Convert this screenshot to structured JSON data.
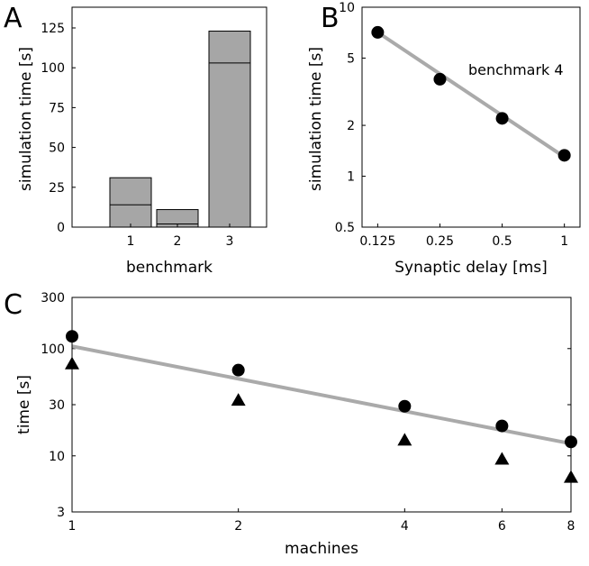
{
  "chart_data": [
    {
      "id": "A",
      "type": "bar",
      "panel_letter": "A",
      "categories": [
        "1",
        "2",
        "3"
      ],
      "series": [
        {
          "name": "total",
          "values": [
            31,
            11,
            123
          ]
        },
        {
          "name": "inner",
          "values": [
            14,
            2,
            103
          ]
        }
      ],
      "xlabel": "benchmark",
      "ylabel": "simulation time [s]",
      "ylim": [
        0,
        138
      ],
      "yticks": [
        0,
        25,
        50,
        75,
        100,
        125
      ],
      "ytick_labels": [
        "0",
        "25",
        "50",
        "75",
        "100",
        "125"
      ],
      "bar_color": "#a6a6a6"
    },
    {
      "id": "B",
      "type": "line",
      "panel_letter": "B",
      "x": [
        0.125,
        0.25,
        0.5,
        1
      ],
      "xscale": "log",
      "yscale": "log",
      "series": [
        {
          "name": "data",
          "x": [
            0.125,
            0.25,
            0.5,
            1
          ],
          "values": [
            7.1,
            3.75,
            2.2,
            1.33
          ]
        },
        {
          "name": "fit",
          "x": [
            0.125,
            1
          ],
          "values": [
            7.1,
            1.3
          ]
        }
      ],
      "xlabel": "Synaptic delay [ms]",
      "ylabel": "simulation time [s]",
      "xlim": [
        0.105,
        1.19
      ],
      "ylim": [
        0.5,
        10
      ],
      "xticks": [
        0.125,
        0.25,
        0.5,
        1
      ],
      "xtick_labels": [
        "0.125",
        "0.25",
        "0.5",
        "1"
      ],
      "yticks": [
        0.5,
        1,
        2,
        5,
        10
      ],
      "ytick_labels": [
        "0.5",
        "1",
        "2",
        "5",
        "10"
      ],
      "annotation": "benchmark 4",
      "fit_color": "#aaaaaa"
    },
    {
      "id": "C",
      "type": "scatter",
      "panel_letter": "C",
      "xscale": "log",
      "yscale": "log",
      "series": [
        {
          "name": "circles",
          "marker": "circle",
          "x": [
            1,
            2,
            4,
            6,
            8
          ],
          "values": [
            130,
            63,
            29,
            19,
            13.5
          ]
        },
        {
          "name": "triangles",
          "marker": "triangle",
          "x": [
            1,
            2,
            4,
            6,
            8
          ],
          "values": [
            72,
            33,
            14,
            9.3,
            6.3
          ]
        },
        {
          "name": "fit",
          "x": [
            1,
            8
          ],
          "values": [
            105,
            13
          ]
        }
      ],
      "xlabel": "machines",
      "ylabel": "time [s]",
      "xlim": [
        1,
        8
      ],
      "ylim": [
        3,
        300
      ],
      "xticks": [
        1,
        2,
        4,
        6,
        8
      ],
      "xtick_labels": [
        "1",
        "2",
        "4",
        "6",
        "8"
      ],
      "yticks": [
        3,
        10,
        30,
        100,
        300
      ],
      "ytick_labels": [
        "3",
        "10",
        "30",
        "100",
        "300"
      ],
      "fit_color": "#aaaaaa"
    }
  ]
}
